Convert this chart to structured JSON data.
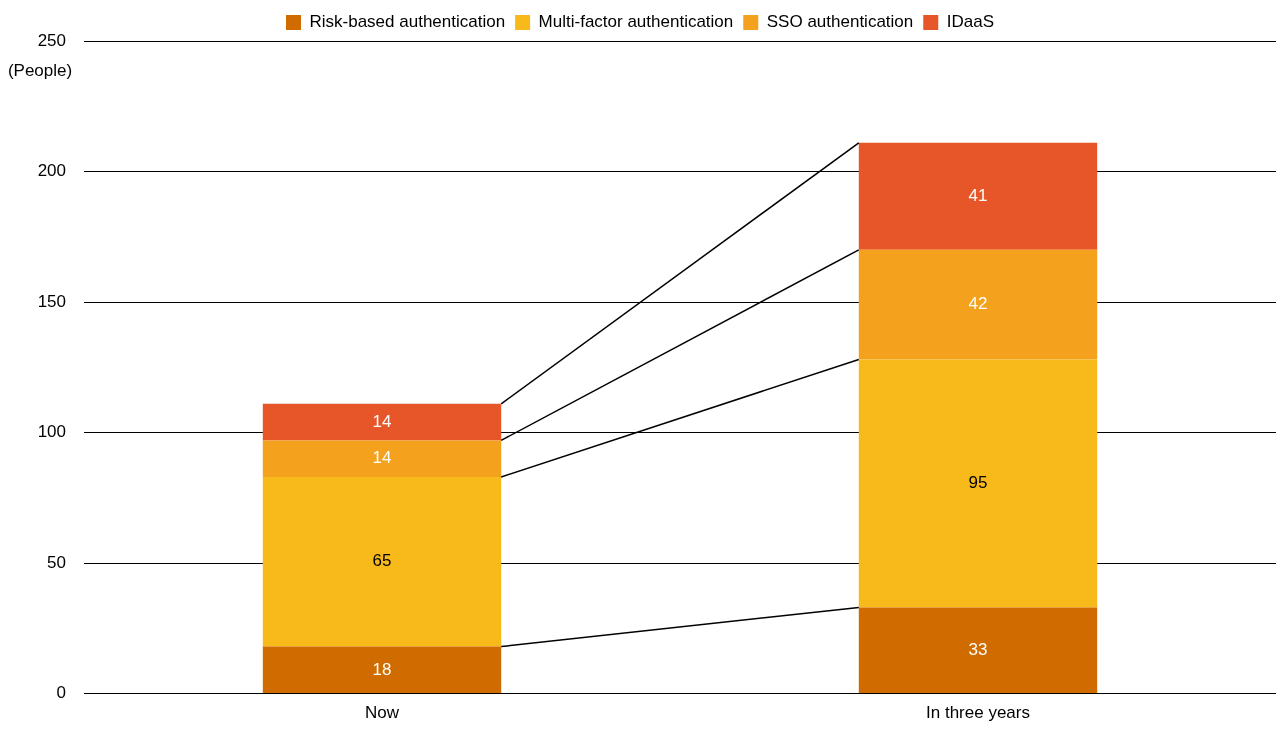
{
  "chart_data": {
    "type": "bar",
    "stacked": true,
    "ylabel": "(People)",
    "categories": [
      "Now",
      "In three years"
    ],
    "series": [
      {
        "name": "Risk-based authentication",
        "color": "#d06b00",
        "values": [
          18,
          33
        ]
      },
      {
        "name": "Multi-factor authentication",
        "color": "#f8b91a",
        "values": [
          65,
          95
        ]
      },
      {
        "name": "SSO authentication",
        "color": "#f4a11e",
        "values": [
          14,
          42
        ]
      },
      {
        "name": "IDaaS",
        "color": "#e75628",
        "values": [
          14,
          41
        ]
      }
    ],
    "ylim": [
      0,
      250
    ],
    "yticks": [
      0,
      50,
      100,
      150,
      200,
      250
    ],
    "grid": "y",
    "legend": "top",
    "data_labels": true
  }
}
